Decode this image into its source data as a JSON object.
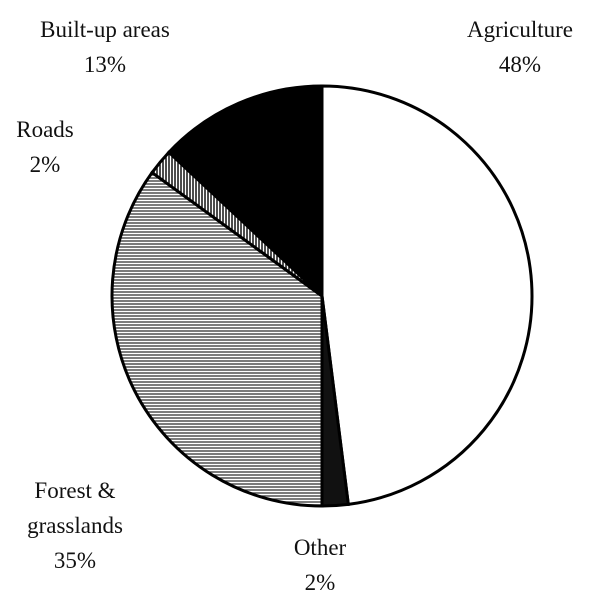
{
  "chart_data": {
    "type": "pie",
    "categories": [
      "Agriculture",
      "Other",
      "Forest & grasslands",
      "Roads",
      "Built-up areas"
    ],
    "values": [
      48,
      2,
      35,
      2,
      13
    ],
    "value_labels": [
      "48%",
      "2%",
      "35%",
      "2%",
      "13%"
    ],
    "colors": [
      "#ffffff",
      "#111111",
      "#666666",
      "#ffffff",
      "#000000"
    ],
    "hatch": [
      "none",
      "none",
      "horizontal",
      "vertical",
      "none"
    ]
  }
}
